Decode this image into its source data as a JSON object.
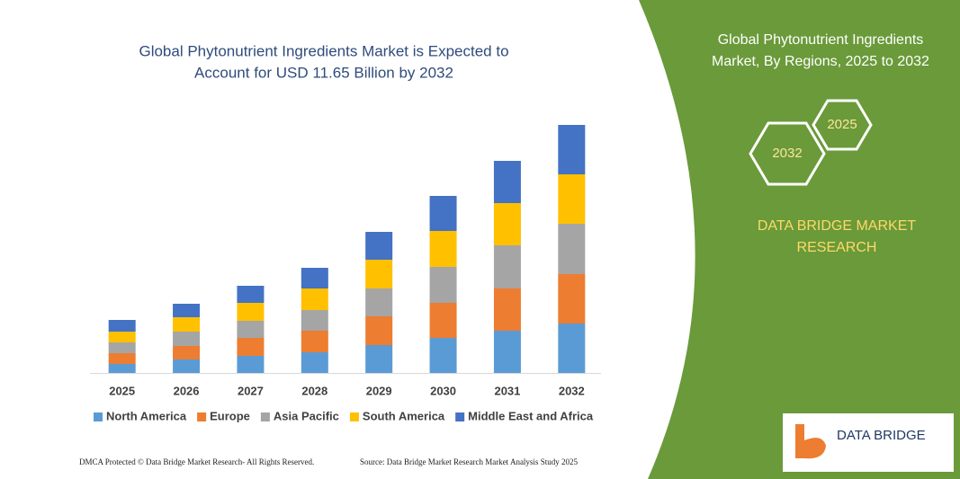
{
  "chart_data": {
    "type": "stacked_bar",
    "title": [
      "Global Phytonutrient Ingredients Market is Expected to",
      "Account for USD 11.65 Billion by 2032"
    ],
    "categories": [
      "2025",
      "2026",
      "2027",
      "2028",
      "2029",
      "2030",
      "2031",
      "2032"
    ],
    "series": [
      {
        "name": "North America",
        "color": "#5b9bd5",
        "values": [
          10,
          15,
          19,
          23,
          31,
          39,
          47,
          55
        ]
      },
      {
        "name": "Europe",
        "color": "#ed7d31",
        "values": [
          12,
          15,
          20,
          24,
          32,
          39,
          47,
          55
        ]
      },
      {
        "name": "Asia Pacific",
        "color": "#a5a5a5",
        "values": [
          12,
          16,
          19,
          23,
          31,
          40,
          48,
          56
        ]
      },
      {
        "name": "South America",
        "color": "#ffc000",
        "values": [
          12,
          16,
          20,
          24,
          32,
          40,
          47,
          55
        ]
      },
      {
        "name": "Middle East and Africa",
        "color": "#4472c4",
        "values": [
          13,
          15,
          19,
          23,
          31,
          39,
          47,
          55
        ]
      }
    ],
    "ylim": [
      0,
      300
    ]
  },
  "panel": {
    "title": [
      "Global Phytonutrient Ingredients",
      "Market, By Regions, 2025 to 2032"
    ],
    "hexagons": [
      "2032",
      "2025"
    ],
    "brand": [
      "DATA BRIDGE MARKET",
      "RESEARCH"
    ]
  },
  "logo": "DATA BRIDGE",
  "footer": {
    "left": "DMCA Protected © Data Bridge Market Research- All Rights Reserved.",
    "right": "Source: Data Bridge Market Research Market Analysis Study 2025"
  }
}
